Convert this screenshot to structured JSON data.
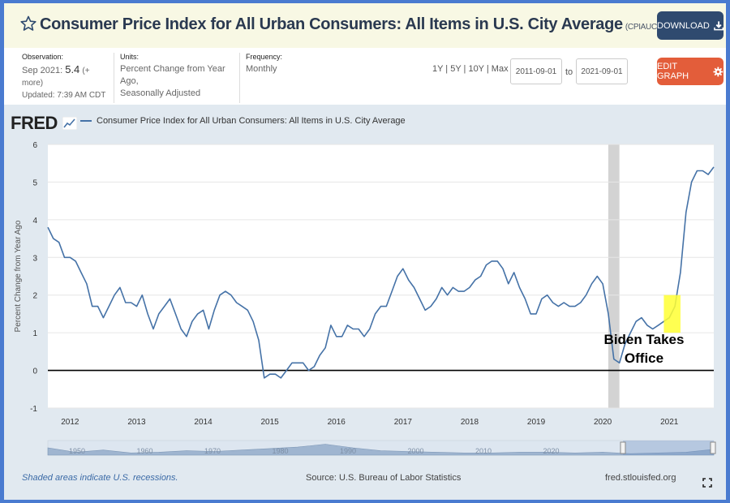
{
  "header": {
    "title": "Consumer Price Index for All Urban Consumers: All Items in U.S. City Average",
    "series_id": "(CPIAUCSL)",
    "download_label": "DOWNLOAD"
  },
  "meta": {
    "observation_label": "Observation:",
    "observation_date": "Sep 2021:",
    "observation_value": "5.4",
    "observation_more": "(+ more)",
    "updated": "Updated: 7:39 AM CDT",
    "units_label": "Units:",
    "units_line1": "Percent Change from Year Ago,",
    "units_line2": "Seasonally Adjusted",
    "frequency_label": "Frequency:",
    "frequency_value": "Monthly",
    "ranges": "1Y | 5Y | 10Y | Max",
    "date_from": "2011-09-01",
    "date_to": "2021-09-01",
    "to_label": "to",
    "edit_label": "EDIT GRAPH"
  },
  "graph": {
    "logo": "FRED",
    "legend": "Consumer Price Index for All Urban Consumers: All Items in U.S. City Average"
  },
  "footer": {
    "recessions": "Shaded areas indicate U.S. recessions.",
    "source": "Source: U.S. Bureau of Labor Statistics",
    "site": "fred.stlouisfed.org"
  },
  "colors": {
    "line": "#4572a7",
    "highlight": "#ffff33",
    "recession": "#d3d3d3",
    "download_bg": "#2f4a6f",
    "edit_bg": "#e35d3a"
  },
  "chart_data": {
    "type": "line",
    "title": "Consumer Price Index for All Urban Consumers: All Items in U.S. City Average",
    "ylabel": "Percent Change from Year Ago",
    "xlabel": "",
    "ylim": [
      -1,
      6
    ],
    "yticks": [
      -1,
      0,
      1,
      2,
      3,
      4,
      5,
      6
    ],
    "xlim": [
      2011.667,
      2021.667
    ],
    "xticks": [
      2012,
      2013,
      2014,
      2015,
      2016,
      2017,
      2018,
      2019,
      2020,
      2021
    ],
    "zero_line": 0,
    "recession": [
      2020.083,
      2020.25
    ],
    "annotation": {
      "line1": "Biden Takes",
      "line2": "Office",
      "x_start": 2020.917,
      "x_end": 2021.167,
      "y_low": 1.0,
      "y_high": 2.0
    },
    "navigator_labels": [
      "1950",
      "1960",
      "1970",
      "1980",
      "1990",
      "2000",
      "2010",
      "2020"
    ],
    "series": [
      {
        "name": "CPIAUCSL",
        "start": 2011.667,
        "step": 0.08333,
        "values": [
          3.8,
          3.5,
          3.4,
          3.0,
          3.0,
          2.9,
          2.6,
          2.3,
          1.7,
          1.7,
          1.4,
          1.7,
          2.0,
          2.2,
          1.8,
          1.8,
          1.7,
          2.0,
          1.5,
          1.1,
          1.5,
          1.7,
          1.9,
          1.5,
          1.1,
          0.9,
          1.3,
          1.5,
          1.6,
          1.1,
          1.6,
          2.0,
          2.1,
          2.0,
          1.8,
          1.7,
          1.6,
          1.3,
          0.8,
          -0.2,
          -0.1,
          -0.1,
          -0.2,
          0.0,
          0.2,
          0.2,
          0.2,
          0.0,
          0.1,
          0.4,
          0.6,
          1.2,
          0.9,
          0.9,
          1.2,
          1.1,
          1.1,
          0.9,
          1.1,
          1.5,
          1.7,
          1.7,
          2.1,
          2.5,
          2.7,
          2.4,
          2.2,
          1.9,
          1.6,
          1.7,
          1.9,
          2.2,
          2.0,
          2.2,
          2.1,
          2.1,
          2.2,
          2.4,
          2.5,
          2.8,
          2.9,
          2.9,
          2.7,
          2.3,
          2.6,
          2.2,
          1.9,
          1.5,
          1.5,
          1.9,
          2.0,
          1.8,
          1.7,
          1.8,
          1.7,
          1.7,
          1.8,
          2.0,
          2.3,
          2.5,
          2.3,
          1.5,
          0.3,
          0.2,
          0.7,
          1.0,
          1.3,
          1.4,
          1.2,
          1.1,
          1.2,
          1.3,
          1.4,
          1.7,
          2.6,
          4.2,
          5.0,
          5.3,
          5.3,
          5.2,
          5.4
        ]
      }
    ]
  }
}
